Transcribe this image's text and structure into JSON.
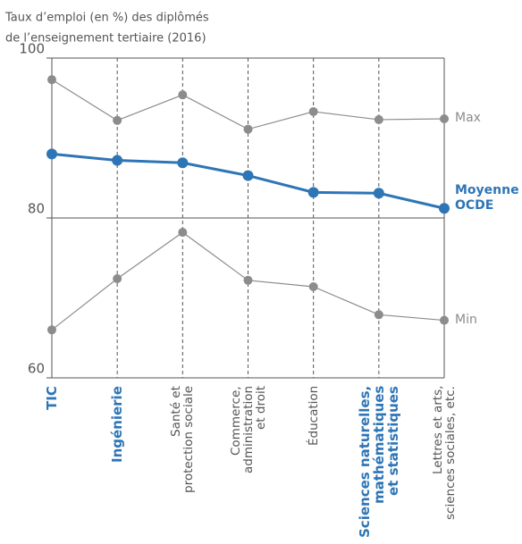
{
  "chart_data": {
    "type": "line",
    "title": [
      "Taux d’emploi (en %) des diplômés",
      "de l’enseignement tertiaire (2016)"
    ],
    "categories": [
      "TIC",
      "Ingénierie",
      "Santé et\nprotection sociale",
      "Commerce,\nadministration\net droit",
      "Éducation",
      "Sciences naturelles,\nmathématiques\net statistiques",
      "Lettres et arts,\nsciences sociales, etc."
    ],
    "category_colors": [
      "#2e75b6",
      "#2e75b6",
      "#555555",
      "#555555",
      "#555555",
      "#2e75b6",
      "#555555"
    ],
    "series": [
      {
        "name": "Max",
        "color": "#8c8c8c",
        "values": [
          97.3,
          92.2,
          95.4,
          91.1,
          93.3,
          92.3,
          92.4
        ]
      },
      {
        "name": "Moyenne OCDE",
        "color": "#2e75b6",
        "values": [
          88.0,
          87.2,
          86.9,
          85.3,
          83.2,
          83.1,
          81.2
        ]
      },
      {
        "name": "Min",
        "color": "#8c8c8c",
        "values": [
          66.0,
          72.4,
          78.2,
          72.2,
          71.4,
          67.9,
          67.2
        ]
      }
    ],
    "ylim": [
      60,
      100
    ],
    "yticks": [
      60,
      80,
      100
    ]
  }
}
